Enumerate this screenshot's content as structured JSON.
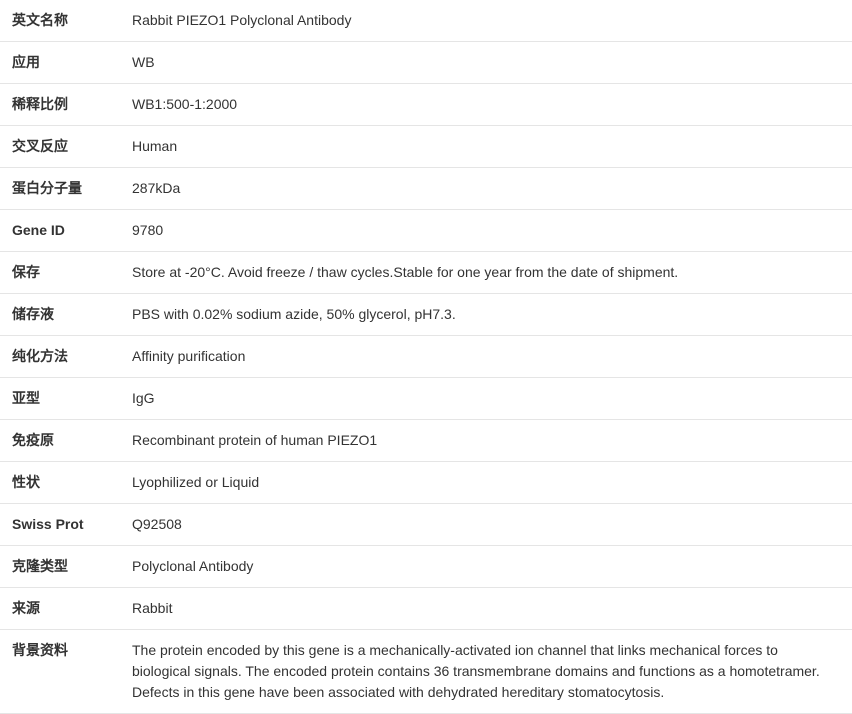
{
  "rows": [
    {
      "label": "英文名称",
      "value": "Rabbit PIEZO1 Polyclonal Antibody"
    },
    {
      "label": "应用",
      "value": "WB"
    },
    {
      "label": "稀释比例",
      "value": "WB1:500-1:2000"
    },
    {
      "label": "交叉反应",
      "value": "Human"
    },
    {
      "label": "蛋白分子量",
      "value": "287kDa"
    },
    {
      "label": "Gene ID",
      "value": "9780"
    },
    {
      "label": "保存",
      "value": "Store at -20°C. Avoid freeze / thaw cycles.Stable for one year from the date of shipment."
    },
    {
      "label": "储存液",
      "value": "PBS with 0.02% sodium azide, 50% glycerol, pH7.3."
    },
    {
      "label": "纯化方法",
      "value": "Affinity purification"
    },
    {
      "label": "亚型",
      "value": "IgG"
    },
    {
      "label": "免疫原",
      "value": "Recombinant protein of human PIEZO1"
    },
    {
      "label": "性状",
      "value": "Lyophilized or Liquid"
    },
    {
      "label": "Swiss Prot",
      "value": "Q92508"
    },
    {
      "label": "克隆类型",
      "value": "Polyclonal Antibody"
    },
    {
      "label": "来源",
      "value": "Rabbit"
    },
    {
      "label": "背景资料",
      "value": "The protein encoded by this gene is a mechanically-activated ion channel that links mechanical forces to biological signals. The encoded protein contains 36 transmembrane domains and functions as a homotetramer. Defects in this gene have been associated with dehydrated hereditary stomatocytosis."
    }
  ],
  "style": {
    "background_color": "#ffffff",
    "border_color": "#e5e5e5",
    "text_color": "#333333",
    "label_font_weight": "bold",
    "font_size": 14,
    "label_col_width": 120,
    "row_padding_v": 10,
    "row_padding_h": 12
  }
}
